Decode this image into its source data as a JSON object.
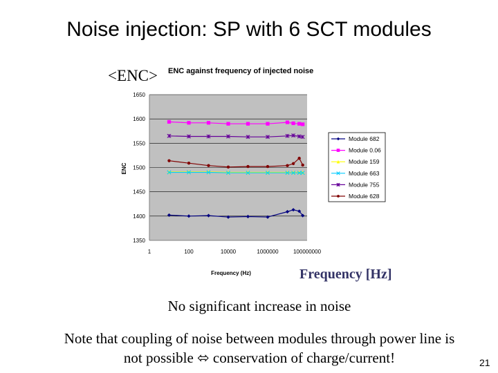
{
  "slide": {
    "title": "Noise injection: SP with 6 SCT modules",
    "enc_label": "<ENC>",
    "freq_label": "Frequency [Hz]",
    "note1": "No significant increase in noise",
    "note2_line1": "Note that coupling of noise between modules through power line is",
    "note2_line2": "not possible ⬄ conservation of charge/current!",
    "page_number": "21"
  },
  "chart_data": {
    "type": "line",
    "title": "ENC against frequency of injected noise",
    "xlabel": "Frequency (Hz)",
    "ylabel": "ENC",
    "xscale": "log",
    "xlim": [
      1,
      100000000
    ],
    "ylim": [
      1350,
      1650
    ],
    "xticks": [
      "1",
      "100",
      "10000",
      "1000000",
      "100000000"
    ],
    "yticks": [
      1350,
      1400,
      1450,
      1500,
      1550,
      1600,
      1650
    ],
    "grid": "horizontal",
    "legend_position": "right",
    "x": [
      10,
      100,
      1000,
      10000,
      100000,
      1000000,
      10000000,
      20000000,
      40000000,
      60000000
    ],
    "series": [
      {
        "name": "Module 682",
        "color": "#000080",
        "marker": "diamond",
        "values": [
          1402,
          1400,
          1401,
          1398,
          1399,
          1398,
          1409,
          1413,
          1410,
          1401
        ]
      },
      {
        "name": "Module 0.06",
        "color": "#ff00ff",
        "marker": "square",
        "values": [
          1594,
          1592,
          1592,
          1590,
          1590,
          1590,
          1593,
          1591,
          1590,
          1589
        ]
      },
      {
        "name": "Module 159",
        "color": "#ffff00",
        "marker": "triangle",
        "values": [
          1491,
          1491,
          1491,
          1490,
          1490,
          1490,
          1490,
          1490,
          1490,
          1490
        ]
      },
      {
        "name": "Module 663",
        "color": "#00ccff",
        "marker": "x",
        "values": [
          1490,
          1490,
          1490,
          1489,
          1489,
          1489,
          1489,
          1489,
          1489,
          1489
        ]
      },
      {
        "name": "Module 755",
        "color": "#660099",
        "marker": "star",
        "values": [
          1565,
          1564,
          1564,
          1564,
          1563,
          1563,
          1565,
          1566,
          1564,
          1563
        ]
      },
      {
        "name": "Module 628",
        "color": "#800000",
        "marker": "circle",
        "values": [
          1514,
          1509,
          1504,
          1501,
          1502,
          1502,
          1504,
          1508,
          1519,
          1505
        ]
      }
    ]
  }
}
